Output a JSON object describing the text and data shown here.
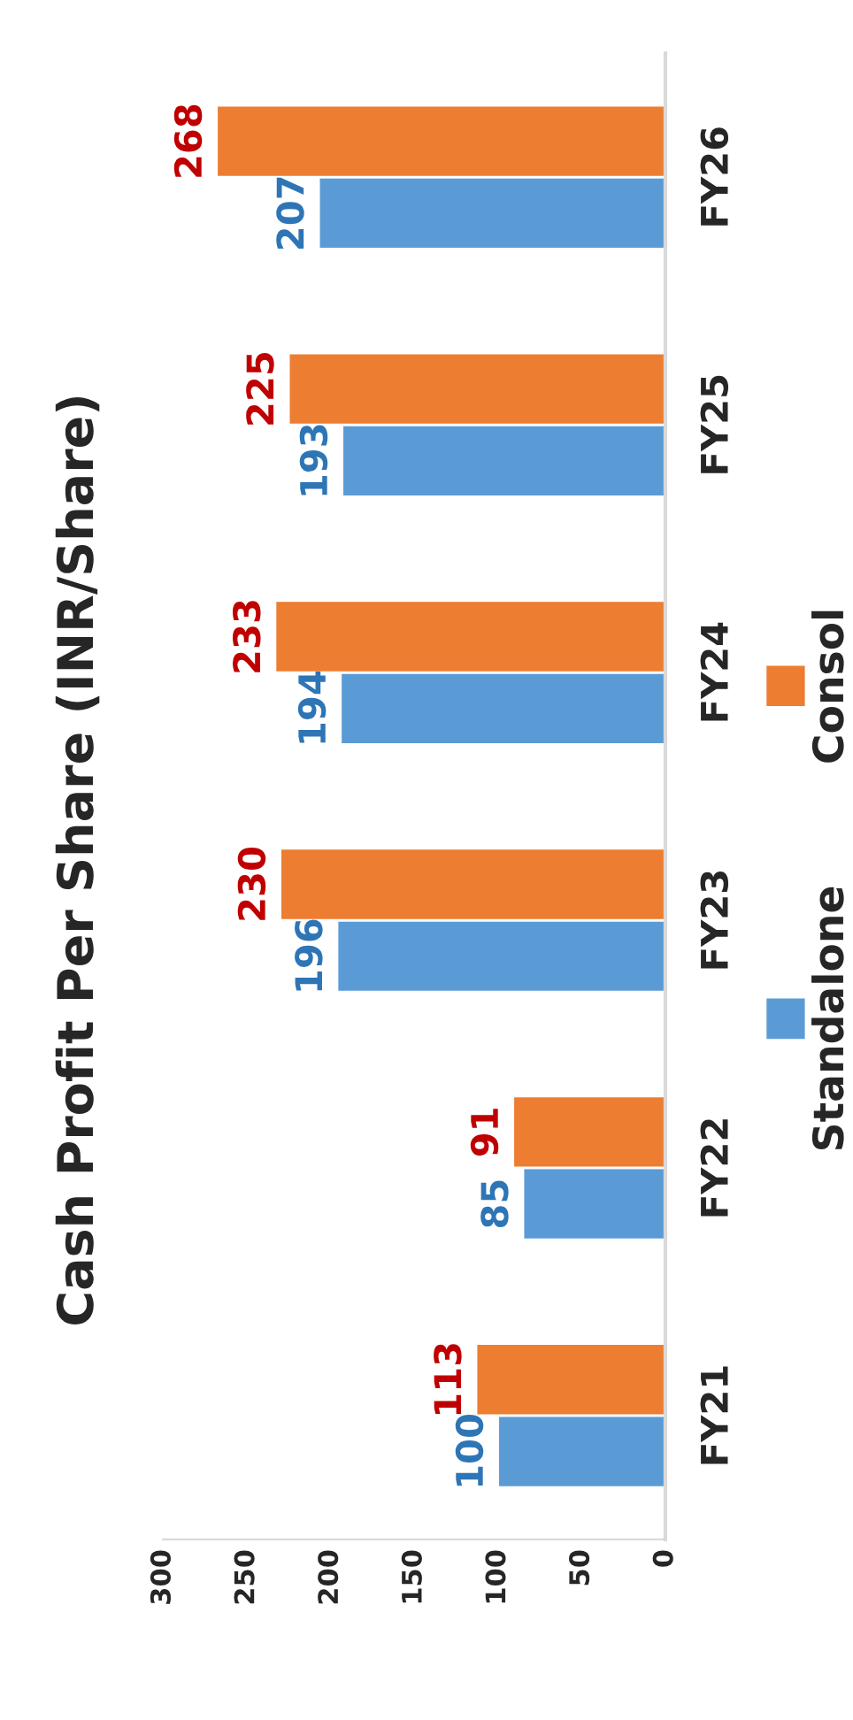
{
  "chart_data": {
    "type": "bar",
    "orientation": "horizontal",
    "title": "Cash Profit Per Share (INR/Share)",
    "categories": [
      "FY26",
      "FY25",
      "FY24",
      "FY23",
      "FY22",
      "FY21"
    ],
    "series": [
      {
        "name": "Standalone",
        "color": "#5b9bd5",
        "values": [
          207,
          193,
          194,
          196,
          85,
          100
        ]
      },
      {
        "name": "Consol",
        "color": "#ed7d31",
        "values": [
          268,
          225,
          233,
          230,
          91,
          113
        ]
      }
    ],
    "xlim": [
      300,
      0
    ],
    "xticks": [
      0,
      50,
      100,
      150,
      200,
      250,
      300
    ],
    "data_labels": true,
    "grid": false,
    "legend": "right"
  }
}
